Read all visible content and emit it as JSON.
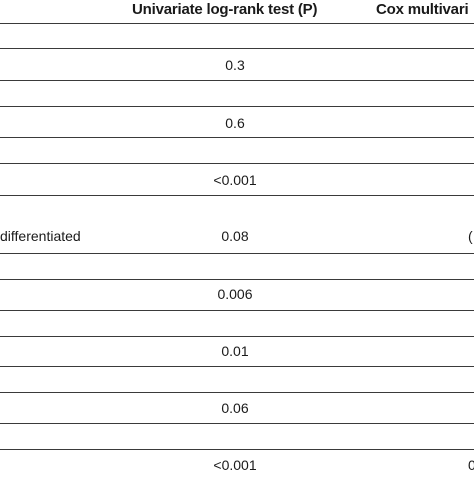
{
  "header": {
    "univariate": "Univariate log-rank test (P)",
    "cox": "Cox multivari"
  },
  "rows": [
    {
      "label": "",
      "p": "0.3",
      "cox": ""
    },
    {
      "label": "",
      "p": "0.6",
      "cox": ""
    },
    {
      "label": "",
      "p": "<0.001",
      "cox": ""
    },
    {
      "label": "differentiated",
      "p": "0.08",
      "cox": "("
    },
    {
      "label": "",
      "p": "0.006",
      "cox": ""
    },
    {
      "label": "",
      "p": "0.01",
      "cox": ""
    },
    {
      "label": "",
      "p": "0.06",
      "cox": ""
    },
    {
      "label": "",
      "p": "<0.001",
      "cox": "0"
    }
  ]
}
